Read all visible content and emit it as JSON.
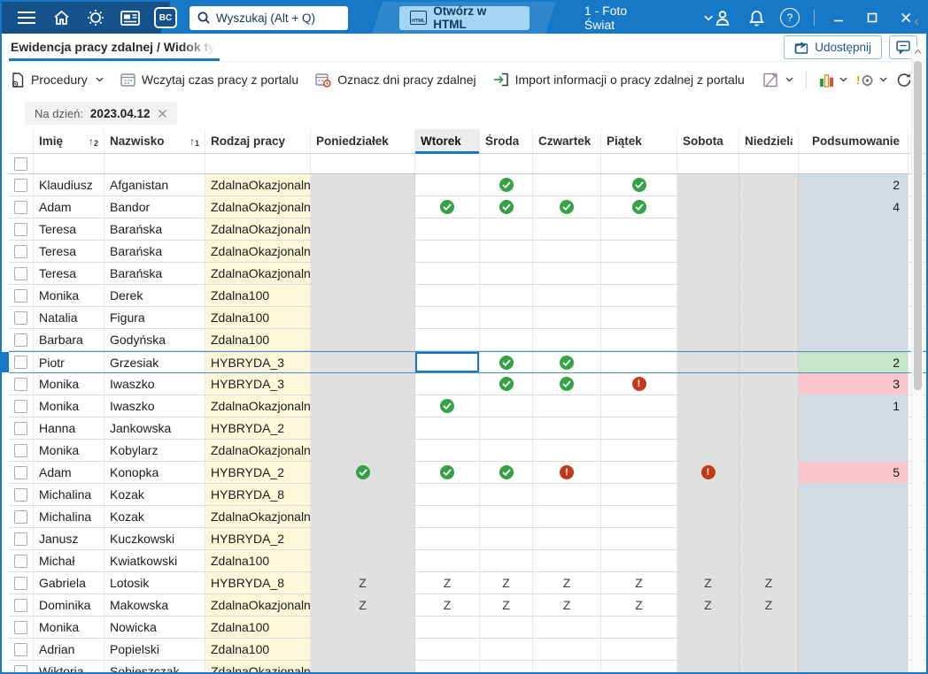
{
  "topbar": {
    "bc_badge": "BC",
    "search_placeholder": "Wyszukaj (Alt + Q)",
    "open_html_label": "Otwórz w HTML",
    "open_html_icon_label": "HTML",
    "company": "1 - Foto Świat"
  },
  "tabrow": {
    "breadcrumb": "Ewidencja pracy zdalnej / Widok tygodniowy",
    "share_label": "Udostępnij"
  },
  "toolbar": {
    "actions": [
      {
        "label": "Procedury",
        "icon": "document-gear-icon",
        "chevron": true
      },
      {
        "label": "Wczytaj czas pracy z portalu",
        "icon": "calendar-icon",
        "chevron": false
      },
      {
        "label": "Oznacz dni pracy zdalnej",
        "icon": "calendar-clock-icon",
        "chevron": false
      },
      {
        "label": "Import informacji o pracy zdalnej z portalu",
        "icon": "import-icon",
        "chevron": false
      }
    ],
    "right_icons": [
      "design-icon",
      "analyze-bars-icon",
      "gear-alert-icon",
      "refresh-icon"
    ]
  },
  "filter": {
    "label": "Na dzień:",
    "value": "2023.04.12"
  },
  "colors": {
    "topbar_blue": "#1878c8",
    "topbar_dark": "#15518b",
    "accent_underline": "#1878c8",
    "cell_yellow": "#fbf7d8",
    "cell_shade": "#e0e0e0",
    "sum_blue": "#d0dbe3",
    "sum_green": "#c6e6c8",
    "sum_pink": "#f9c7cb",
    "status_green": "#35a245",
    "status_red": "#c2381b"
  },
  "table": {
    "columns": [
      {
        "key": "imie",
        "label": "Imię",
        "sort": "2"
      },
      {
        "key": "naz",
        "label": "Nazwisko",
        "sort": "1"
      },
      {
        "key": "rodz",
        "label": "Rodzaj pracy"
      },
      {
        "key": "pon",
        "label": "Poniedziałek"
      },
      {
        "key": "wt",
        "label": "Wtorek",
        "active": true
      },
      {
        "key": "sr",
        "label": "Środa"
      },
      {
        "key": "czw",
        "label": "Czwartek"
      },
      {
        "key": "pt",
        "label": "Piątek"
      },
      {
        "key": "sob",
        "label": "Sobota"
      },
      {
        "key": "ndz",
        "label": "Niedziela"
      },
      {
        "key": "pods",
        "label": "Podsumowanie"
      }
    ],
    "rows": [
      {
        "imie": "Klaudiusz",
        "nazwisko": "Afganistan",
        "rodzaj": "ZdalnaOkazjonalna",
        "days": [
          "",
          "",
          "check",
          "",
          "check",
          "",
          ""
        ],
        "sum": "2",
        "sum_bg": "blue"
      },
      {
        "imie": "Adam",
        "nazwisko": "Bandor",
        "rodzaj": "ZdalnaOkazjonalna",
        "days": [
          "",
          "check",
          "check",
          "check",
          "check",
          "",
          ""
        ],
        "sum": "4",
        "sum_bg": "blue"
      },
      {
        "imie": "Teresa",
        "nazwisko": "Barańska",
        "rodzaj": "ZdalnaOkazjonalna",
        "days": [
          "",
          "",
          "",
          "",
          "",
          "",
          ""
        ],
        "sum": "",
        "sum_bg": "blue"
      },
      {
        "imie": "Teresa",
        "nazwisko": "Barańska",
        "rodzaj": "ZdalnaOkazjonalna",
        "days": [
          "",
          "",
          "",
          "",
          "",
          "",
          ""
        ],
        "sum": "",
        "sum_bg": "blue"
      },
      {
        "imie": "Teresa",
        "nazwisko": "Barańska",
        "rodzaj": "ZdalnaOkazjonalna",
        "days": [
          "",
          "",
          "",
          "",
          "",
          "",
          ""
        ],
        "sum": "",
        "sum_bg": "blue"
      },
      {
        "imie": "Monika",
        "nazwisko": "Derek",
        "rodzaj": "Zdalna100",
        "days": [
          "",
          "",
          "",
          "",
          "",
          "",
          ""
        ],
        "sum": "",
        "sum_bg": "blue"
      },
      {
        "imie": "Natalia",
        "nazwisko": "Figura",
        "rodzaj": "Zdalna100",
        "days": [
          "",
          "",
          "",
          "",
          "",
          "",
          ""
        ],
        "sum": "",
        "sum_bg": "blue"
      },
      {
        "imie": "Barbara",
        "nazwisko": "Godyńska",
        "rodzaj": "Zdalna100",
        "days": [
          "",
          "",
          "",
          "",
          "",
          "",
          ""
        ],
        "sum": "",
        "sum_bg": "blue"
      },
      {
        "imie": "Piotr",
        "nazwisko": "Grzesiak",
        "rodzaj": "HYBRYDA_3",
        "days": [
          "",
          "",
          "check",
          "check",
          "",
          "",
          ""
        ],
        "sum": "2",
        "sum_bg": "green",
        "selected": true,
        "focus_day": 1
      },
      {
        "imie": "Monika",
        "nazwisko": "Iwaszko",
        "rodzaj": "HYBRYDA_3",
        "days": [
          "",
          "",
          "check",
          "check",
          "alert",
          "",
          ""
        ],
        "sum": "3",
        "sum_bg": "pink"
      },
      {
        "imie": "Monika",
        "nazwisko": "Iwaszko",
        "rodzaj": "ZdalnaOkazjonalna",
        "days": [
          "",
          "check",
          "",
          "",
          "",
          "",
          ""
        ],
        "sum": "1",
        "sum_bg": "blue"
      },
      {
        "imie": "Hanna",
        "nazwisko": "Jankowska",
        "rodzaj": "HYBRYDA_2",
        "days": [
          "",
          "",
          "",
          "",
          "",
          "",
          ""
        ],
        "sum": "",
        "sum_bg": "blue"
      },
      {
        "imie": "Monika",
        "nazwisko": "Kobylarz",
        "rodzaj": "ZdalnaOkazjonalna",
        "days": [
          "",
          "",
          "",
          "",
          "",
          "",
          ""
        ],
        "sum": "",
        "sum_bg": "blue"
      },
      {
        "imie": "Adam",
        "nazwisko": "Konopka",
        "rodzaj": "HYBRYDA_2",
        "days": [
          "check",
          "check",
          "check",
          "alert",
          "",
          "alert",
          ""
        ],
        "sum": "5",
        "sum_bg": "pink"
      },
      {
        "imie": "Michalina",
        "nazwisko": "Kozak",
        "rodzaj": "HYBRYDA_8",
        "days": [
          "",
          "",
          "",
          "",
          "",
          "",
          ""
        ],
        "sum": "",
        "sum_bg": "blue"
      },
      {
        "imie": "Michalina",
        "nazwisko": "Kozak",
        "rodzaj": "ZdalnaOkazjonalna",
        "days": [
          "",
          "",
          "",
          "",
          "",
          "",
          ""
        ],
        "sum": "",
        "sum_bg": "blue"
      },
      {
        "imie": "Janusz",
        "nazwisko": "Kuczkowski",
        "rodzaj": "HYBRYDA_2",
        "days": [
          "",
          "",
          "",
          "",
          "",
          "",
          ""
        ],
        "sum": "",
        "sum_bg": "blue"
      },
      {
        "imie": "Michał",
        "nazwisko": "Kwiatkowski",
        "rodzaj": "Zdalna100",
        "days": [
          "",
          "",
          "",
          "",
          "",
          "",
          ""
        ],
        "sum": "",
        "sum_bg": "blue"
      },
      {
        "imie": "Gabriela",
        "nazwisko": "Lotosik",
        "rodzaj": "HYBRYDA_8",
        "days": [
          "Z",
          "Z",
          "Z",
          "Z",
          "Z",
          "Z",
          "Z"
        ],
        "sum": "",
        "sum_bg": "blue"
      },
      {
        "imie": "Dominika",
        "nazwisko": "Makowska",
        "rodzaj": "ZdalnaOkazjonalna",
        "days": [
          "Z",
          "Z",
          "Z",
          "Z",
          "Z",
          "Z",
          "Z"
        ],
        "sum": "",
        "sum_bg": "blue"
      },
      {
        "imie": "Monika",
        "nazwisko": "Nowicka",
        "rodzaj": "Zdalna100",
        "days": [
          "",
          "",
          "",
          "",
          "",
          "",
          ""
        ],
        "sum": "",
        "sum_bg": "blue"
      },
      {
        "imie": "Adrian",
        "nazwisko": "Popielski",
        "rodzaj": "Zdalna100",
        "days": [
          "",
          "",
          "",
          "",
          "",
          "",
          ""
        ],
        "sum": "",
        "sum_bg": "blue"
      },
      {
        "imie": "Wiktoria",
        "nazwisko": "Sobieszczak",
        "rodzaj": "ZdalnaOkazjonalna",
        "days": [
          "",
          "",
          "",
          "",
          "",
          "",
          ""
        ],
        "sum": "",
        "sum_bg": "blue"
      }
    ]
  }
}
